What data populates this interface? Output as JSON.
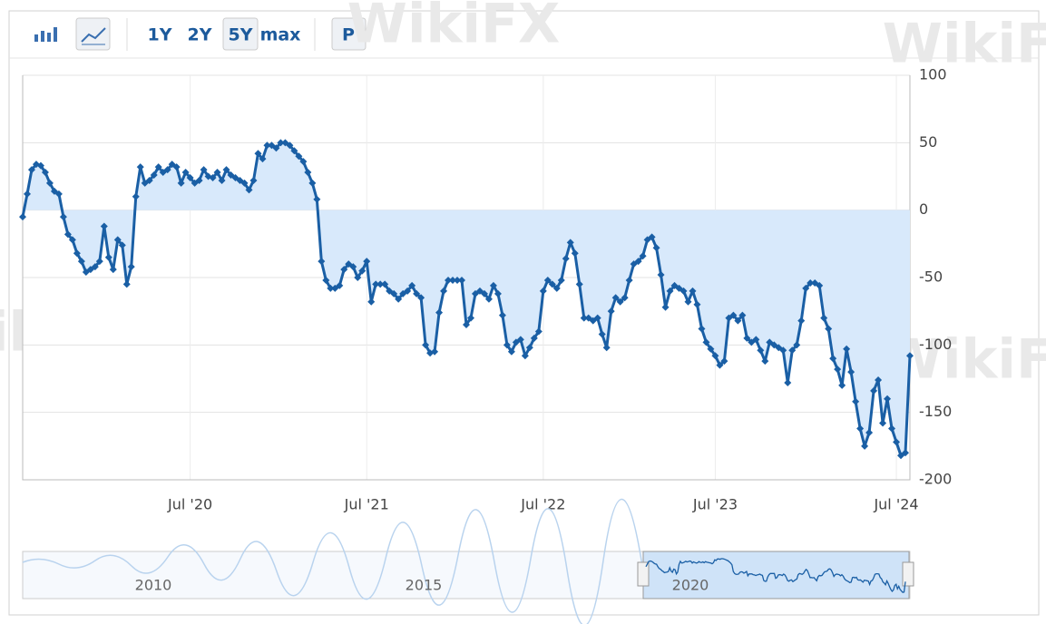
{
  "chart_data": {
    "type": "line",
    "range_buttons": [
      "1Y",
      "2Y",
      "5Y",
      "max"
    ],
    "print_button": "P",
    "watermark": "WikiFX",
    "navigator_labels": [
      "2010",
      "2015",
      "2020"
    ],
    "color": "#1a5fa5",
    "area_color": "#d8e9fb",
    "grid": true,
    "x": [
      0,
      1,
      2,
      3,
      4,
      5,
      6,
      7,
      8,
      9,
      10,
      11,
      12,
      13,
      14,
      15,
      16,
      17,
      18,
      19,
      20,
      21,
      22,
      23,
      24,
      25,
      26,
      27,
      28,
      29,
      30,
      31,
      32,
      33,
      34,
      35,
      36,
      37,
      38,
      39,
      40,
      41,
      42,
      43,
      44,
      45,
      46,
      47,
      48,
      49,
      50,
      51,
      52,
      53,
      54,
      55,
      56,
      57,
      58,
      59,
      60,
      61,
      62,
      63,
      64,
      65,
      66,
      67,
      68,
      69,
      70,
      71,
      72,
      73,
      74,
      75,
      76,
      77,
      78,
      79,
      80,
      81,
      82,
      83,
      84,
      85,
      86,
      87,
      88,
      89,
      90,
      91,
      92,
      93,
      94,
      95,
      96,
      97,
      98,
      99,
      100,
      101,
      102,
      103,
      104,
      105,
      106,
      107,
      108,
      109,
      110,
      111,
      112,
      113,
      114,
      115,
      116,
      117,
      118,
      119,
      120,
      121,
      122,
      123,
      124,
      125,
      126,
      127,
      128,
      129,
      130,
      131,
      132,
      133,
      134,
      135,
      136,
      137,
      138,
      139,
      140,
      141,
      142,
      143,
      144,
      145,
      146,
      147,
      148,
      149,
      150,
      151,
      152,
      153,
      154,
      155,
      156,
      157,
      158,
      159,
      160,
      161,
      162,
      163,
      164,
      165,
      166,
      167,
      168,
      169,
      170,
      171,
      172,
      173,
      174,
      175,
      176,
      177,
      178,
      179,
      180,
      181,
      182,
      183,
      184,
      185,
      186,
      187,
      188,
      189,
      190,
      191,
      192,
      193,
      194,
      195,
      196
    ],
    "values": [
      -5,
      12,
      30,
      34,
      33,
      28,
      20,
      14,
      12,
      -5,
      -18,
      -22,
      -32,
      -38,
      -46,
      -44,
      -42,
      -38,
      -12,
      -35,
      -44,
      -22,
      -26,
      -55,
      -42,
      10,
      32,
      20,
      22,
      26,
      32,
      28,
      30,
      34,
      32,
      20,
      28,
      24,
      20,
      22,
      30,
      25,
      24,
      28,
      22,
      30,
      26,
      24,
      22,
      20,
      15,
      22,
      42,
      38,
      48,
      48,
      46,
      50,
      50,
      48,
      44,
      40,
      36,
      28,
      20,
      8,
      -38,
      -52,
      -58,
      -58,
      -56,
      -44,
      -40,
      -42,
      -50,
      -45,
      -38,
      -68,
      -55,
      -55,
      -55,
      -60,
      -62,
      -66,
      -62,
      -60,
      -56,
      -62,
      -65,
      -100,
      -106,
      -105,
      -76,
      -60,
      -52,
      -52,
      -52,
      -52,
      -85,
      -80,
      -62,
      -60,
      -62,
      -66,
      -56,
      -62,
      -78,
      -100,
      -105,
      -98,
      -96,
      -108,
      -102,
      -95,
      -90,
      -60,
      -52,
      -55,
      -58,
      -52,
      -36,
      -24,
      -32,
      -55,
      -80,
      -80,
      -82,
      -80,
      -92,
      -102,
      -75,
      -65,
      -68,
      -65,
      -52,
      -40,
      -38,
      -34,
      -22,
      -20,
      -28,
      -48,
      -72,
      -60,
      -56,
      -58,
      -60,
      -68,
      -60,
      -70,
      -88,
      -98,
      -103,
      -108,
      -115,
      -112,
      -80,
      -78,
      -82,
      -78,
      -95,
      -98,
      -96,
      -104,
      -112,
      -98,
      -100,
      -102,
      -104,
      -128,
      -104,
      -100,
      -82,
      -58,
      -54,
      -54,
      -56,
      -80,
      -88,
      -110,
      -118,
      -130,
      -103,
      -120,
      -142,
      -162,
      -175,
      -165,
      -134,
      -126,
      -158,
      -140,
      -162,
      -172,
      -182,
      -180,
      -108
    ],
    "xlim": [
      0,
      196
    ],
    "xticks": [
      {
        "value": 37,
        "label": "Jul '20"
      },
      {
        "value": 76,
        "label": "Jul '21"
      },
      {
        "value": 115,
        "label": "Jul '22"
      },
      {
        "value": 153,
        "label": "Jul '23"
      },
      {
        "value": 193,
        "label": "Jul '24"
      }
    ],
    "ylim": [
      -200,
      100
    ],
    "yticks": [
      100,
      50,
      0,
      -50,
      -100,
      -150,
      -200
    ]
  }
}
